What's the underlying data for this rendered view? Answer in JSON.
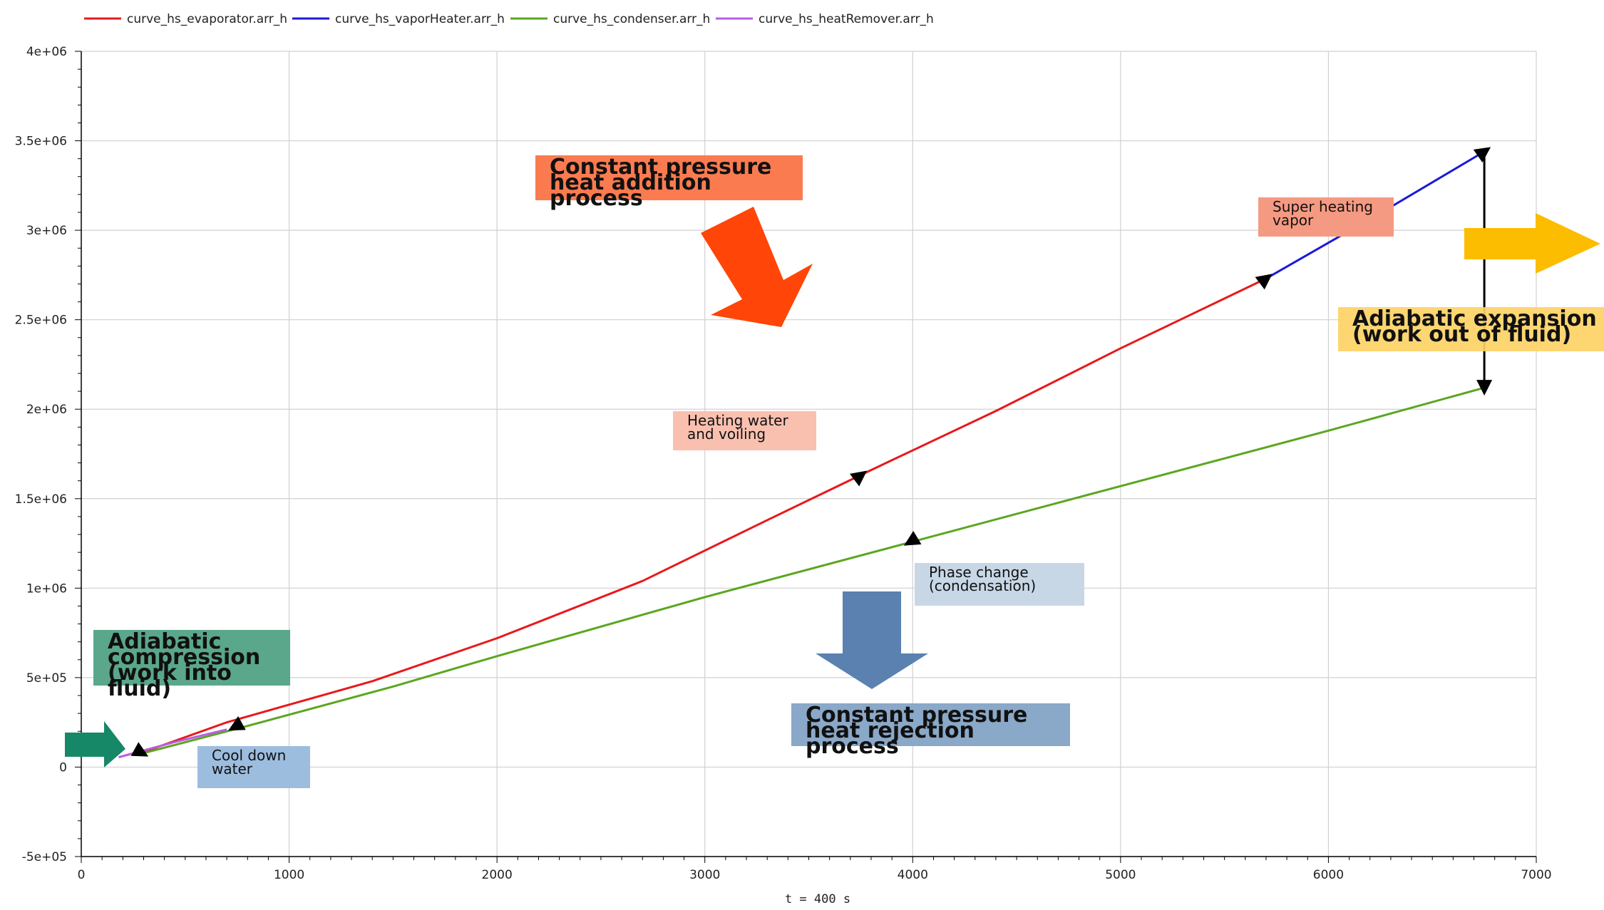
{
  "chart_data": {
    "type": "line",
    "title": "",
    "xlabel": "t = 400 s",
    "ylabel": "",
    "xlim": [
      0,
      7000
    ],
    "ylim": [
      -500000,
      4000000
    ],
    "x_ticks": [
      0,
      1000,
      2000,
      3000,
      4000,
      5000,
      6000,
      7000
    ],
    "x_tick_labels": [
      "0",
      "1000",
      "2000",
      "3000",
      "4000",
      "5000",
      "6000",
      "7000"
    ],
    "y_ticks": [
      -500000,
      0,
      500000,
      1000000,
      1500000,
      2000000,
      2500000,
      3000000,
      3500000,
      4000000
    ],
    "y_tick_labels": [
      "-5e+05",
      "0",
      "5e+05",
      "1e+06",
      "1.5e+06",
      "2e+06",
      "2.5e+06",
      "3e+06",
      "3.5e+06",
      "4e+06"
    ],
    "grid": true,
    "legend_position": "top-left",
    "series": [
      {
        "name": "curve_hs_evaporator.arr_h",
        "color": "#e8191c",
        "x": [
          290,
          700,
          1400,
          2000,
          2700,
          3300,
          3800,
          4400,
          5000,
          5700
        ],
        "y": [
          80000,
          250000,
          480000,
          720000,
          1040000,
          1380000,
          1660000,
          1990000,
          2340000,
          2730000
        ]
      },
      {
        "name": "curve_hs_vaporHeater.arr_h",
        "color": "#1a1ad6",
        "x": [
          5700,
          6000,
          6300,
          6750
        ],
        "y": [
          2730000,
          2930000,
          3130000,
          3440000
        ]
      },
      {
        "name": "curve_hs_condenser.arr_h",
        "color": "#5aa620",
        "x": [
          290,
          800,
          1500,
          2000,
          3000,
          4000,
          5000,
          6000,
          6750
        ],
        "y": [
          75000,
          230000,
          450000,
          620000,
          950000,
          1260000,
          1570000,
          1880000,
          2120000
        ]
      },
      {
        "name": "curve_hs_heatRemover.arr_h",
        "color": "#b75ee0",
        "x": [
          180,
          450,
          700
        ],
        "y": [
          55000,
          140000,
          210000
        ]
      }
    ],
    "arrows": [
      {
        "x": 290,
        "y": 80000
      },
      {
        "x": 740,
        "y": 225000
      },
      {
        "x": 3750,
        "y": 1630000
      },
      {
        "x": 3990,
        "y": 1260000
      },
      {
        "x": 5700,
        "y": 2730000
      },
      {
        "x": 6750,
        "y": 3440000
      },
      {
        "x": 6750,
        "y": 2120000
      }
    ],
    "expansion_line": {
      "x": 6750,
      "y_top": 3440000,
      "y_bottom": 2120000
    }
  },
  "annotations": {
    "heat_addition": "Constant pressure\nheat addition process",
    "super_heating": "Super heating\nvapor",
    "adiabatic_expansion": "Adiabatic expansion\n(work out of fluid)",
    "heating_water": "Heating water\nand voiling",
    "phase_change": "Phase change\n(condensation)",
    "adiabatic_compression": "Adiabatic\ncompression\n(work into fluid)",
    "cool_down": "Cool down\nwater",
    "heat_rejection": "Constant pressure\nheat rejection process"
  },
  "colors": {
    "heat_addition_box": "#fb7b50",
    "super_heating_box": "#f59a82",
    "adiabatic_expansion_box": "#fdd266",
    "heating_water_box": "#f9c0b0",
    "phase_change_box": "#c8d7e6",
    "adiabatic_compression_box": "#5aa78b",
    "cool_down_box": "#9dbddf",
    "heat_rejection_box": "#8aa8c8",
    "orange_red_arrow": "#ff4507",
    "gold_arrow": "#fcbc00",
    "teal_arrow": "#168868",
    "steel_blue_arrow": "#5a81b0",
    "axis_color": "#000000",
    "grid_color": "#d0d0d0"
  }
}
